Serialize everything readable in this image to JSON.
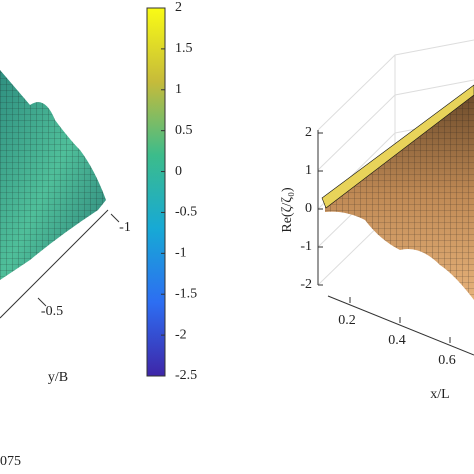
{
  "chart_data": [
    {
      "type": "surface",
      "ylabel": "y/B",
      "yticks": [
        -1,
        -0.5
      ]
    },
    {
      "type": "colorbar",
      "clim": [
        -2.5,
        2
      ],
      "ticks": [
        2,
        1.5,
        1,
        0.5,
        0,
        -0.5,
        -1,
        -1.5,
        -2,
        -2.5
      ]
    },
    {
      "type": "surface",
      "zlabel": "Re(ζ/ζ₀)",
      "zlim": [
        -2,
        2
      ],
      "zticks": [
        2,
        1,
        0,
        -1,
        -2
      ],
      "xlabel": "x/L",
      "xticks": [
        0.2,
        0.4,
        0.6
      ]
    }
  ],
  "caption": "075"
}
